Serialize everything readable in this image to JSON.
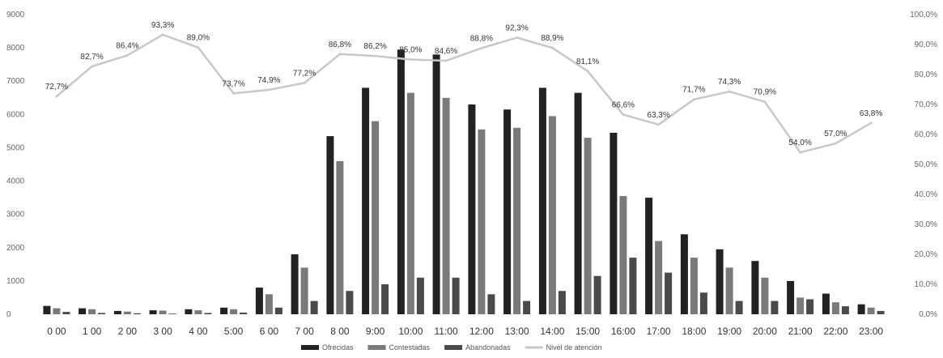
{
  "chart_data": {
    "type": "bar",
    "categories": [
      "0:00",
      "1:00",
      "2:00",
      "3:00",
      "4:00",
      "5:00",
      "6:00",
      "7:00",
      "8:00",
      "9:00",
      "10:00",
      "11:00",
      "12:00",
      "13:00",
      "14:00",
      "15:00",
      "16:00",
      "17:00",
      "18:00",
      "19:00",
      "20:00",
      "21:00",
      "22:00",
      "23:00"
    ],
    "series": [
      {
        "name": "Ofrecidas",
        "color": "#222222",
        "values": [
          250,
          180,
          100,
          120,
          150,
          200,
          800,
          1800,
          5350,
          6800,
          7950,
          7800,
          6300,
          6150,
          6800,
          6650,
          5450,
          3500,
          2400,
          1950,
          1600,
          1000,
          620,
          300
        ]
      },
      {
        "name": "Contestadas",
        "color": "#7a7a7a",
        "values": [
          180,
          150,
          80,
          110,
          120,
          150,
          600,
          1400,
          4600,
          5800,
          6650,
          6500,
          5550,
          5600,
          5950,
          5300,
          3550,
          2200,
          1700,
          1400,
          1100,
          500,
          360,
          200
        ]
      },
      {
        "name": "Abandonadas",
        "color": "#4a4a4a",
        "values": [
          70,
          40,
          30,
          20,
          40,
          50,
          200,
          400,
          700,
          900,
          1100,
          1100,
          600,
          400,
          700,
          1150,
          1700,
          1250,
          650,
          400,
          400,
          450,
          240,
          100
        ]
      },
      {
        "name": "Nivel de atención",
        "type": "line",
        "axis": "right",
        "color": "#c8c8c8",
        "values": [
          72.7,
          82.7,
          86.4,
          93.3,
          89.0,
          73.7,
          74.9,
          77.2,
          86.8,
          86.2,
          85.0,
          84.6,
          88.8,
          92.3,
          88.9,
          81.1,
          66.6,
          63.3,
          71.7,
          74.3,
          70.9,
          54.0,
          57.0,
          63.8
        ]
      }
    ],
    "labels": [
      "72,7%",
      "82,7%",
      "86,4%",
      "93,3%",
      "89,0%",
      "73,7%",
      "74,9%",
      "77,2%",
      "86,8%",
      "86,2%",
      "85,0%",
      "84,6%",
      "88,8%",
      "92,3%",
      "88,9%",
      "81,1%",
      "66,6%",
      "63,3%",
      "71,7%",
      "74,3%",
      "70,9%",
      "54,0%",
      "57,0%",
      "63,8%"
    ],
    "x_tick_labels": [
      "0 00",
      "1 00",
      "2 00",
      "3 00",
      "4 00",
      "5:00",
      "6 00",
      "7 00",
      "8 00",
      "9:00",
      "10:00",
      "11:00",
      "12:00",
      "13:00",
      "14:00",
      "15:00",
      "16:00",
      "17:00",
      "18:00",
      "19:00",
      "20:00",
      "21:00",
      "22:00",
      "23:00"
    ],
    "y_left": {
      "range": [
        0,
        9000
      ],
      "ticks": [
        0,
        1000,
        2000,
        3000,
        4000,
        5000,
        6000,
        7000,
        8000,
        9000
      ],
      "tick_labels": [
        "0",
        "1000",
        "2000",
        "3000",
        "4000",
        "5000",
        "6000",
        "7000",
        "8000",
        "9000"
      ]
    },
    "y_right": {
      "range": [
        0,
        100
      ],
      "ticks": [
        0,
        10,
        20,
        30,
        40,
        50,
        60,
        70,
        80,
        90,
        100
      ],
      "tick_labels": [
        "0,0%",
        "10,0%",
        "20,0%",
        "30,0%",
        "40,0%",
        "50,0%",
        "60,0%",
        "70,0%",
        "80,0%",
        "90,0%",
        "100,0%"
      ]
    },
    "legend": {
      "placement": "bottom-center",
      "entries": [
        "Ofrecidas",
        "Contestadas",
        "Abandonadas",
        "Nivel de atención"
      ]
    },
    "grid": false,
    "title": "",
    "xlabel": "",
    "ylabel": ""
  }
}
